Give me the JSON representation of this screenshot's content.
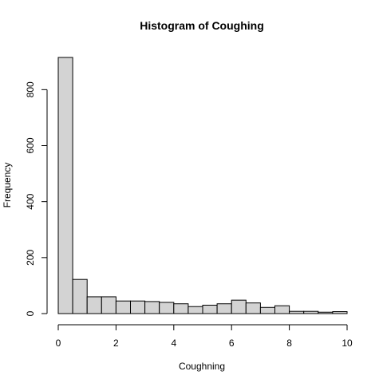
{
  "chart_data": {
    "type": "bar",
    "title": "Histogram of Coughing",
    "xlabel": "Coughning",
    "ylabel": "Frequency",
    "bin_edges": [
      0,
      0.5,
      1,
      1.5,
      2,
      2.5,
      3,
      3.5,
      4,
      4.5,
      5,
      5.5,
      6,
      6.5,
      7,
      7.5,
      8,
      8.5,
      9,
      9.5,
      10
    ],
    "values": [
      915,
      122,
      60,
      60,
      45,
      45,
      43,
      40,
      35,
      25,
      30,
      35,
      48,
      38,
      22,
      28,
      8,
      8,
      5,
      7
    ],
    "xlim": [
      0,
      10
    ],
    "ylim": [
      0,
      915
    ],
    "x_ticks": [
      0,
      2,
      4,
      6,
      8,
      10
    ],
    "x_tick_labels": [
      "0",
      "2",
      "4",
      "6",
      "8",
      "10"
    ],
    "y_ticks": [
      0,
      200,
      400,
      600,
      800
    ],
    "y_tick_labels": [
      "0",
      "200",
      "400",
      "600",
      "800"
    ],
    "grid": false,
    "legend": "none",
    "bar_fill": "#d3d3d3",
    "bar_stroke": "#000000"
  }
}
